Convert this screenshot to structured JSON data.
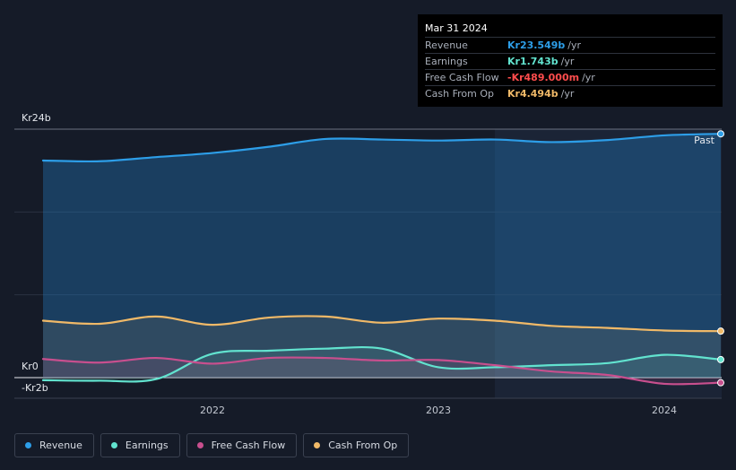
{
  "tooltip": {
    "date": "Mar 31 2024",
    "rows": [
      {
        "label": "Revenue",
        "value": "Kr23.549b",
        "unit": "/yr",
        "color": "#2d9ee8"
      },
      {
        "label": "Earnings",
        "value": "Kr1.743b",
        "unit": "/yr",
        "color": "#62e3cf"
      },
      {
        "label": "Free Cash Flow",
        "value": "-Kr489.000m",
        "unit": "/yr",
        "color": "#ff4d4d"
      },
      {
        "label": "Cash From Op",
        "value": "Kr4.494b",
        "unit": "/yr",
        "color": "#f0b968"
      }
    ]
  },
  "legend": [
    {
      "label": "Revenue",
      "color": "#2d9ee8"
    },
    {
      "label": "Earnings",
      "color": "#62e3cf"
    },
    {
      "label": "Free Cash Flow",
      "color": "#c84f8e"
    },
    {
      "label": "Cash From Op",
      "color": "#f0b968"
    }
  ],
  "chart_data": {
    "type": "area",
    "y_unit": "Kr billions",
    "ylim": [
      -2,
      24
    ],
    "y_tick_labels": [
      {
        "label": "Kr24b",
        "value": 24
      },
      {
        "label": "Kr0",
        "value": 0
      },
      {
        "label": "-Kr2b",
        "value": -2
      }
    ],
    "x_tick_labels": [
      {
        "label": "2022",
        "value": 2022.0
      },
      {
        "label": "2023",
        "value": 2023.0
      },
      {
        "label": "2024",
        "value": 2024.0
      }
    ],
    "xlim": [
      2021.12,
      2024.25
    ],
    "past_label": "Past",
    "past_start": 2023.25,
    "grid": true,
    "legend_position": "bottom-left",
    "series": [
      {
        "name": "Revenue",
        "color": "#2d9ee8",
        "points": [
          [
            2021.25,
            20.97
          ],
          [
            2021.5,
            20.9
          ],
          [
            2021.75,
            21.3
          ],
          [
            2022.0,
            21.7
          ],
          [
            2022.25,
            22.3
          ],
          [
            2022.5,
            23.05
          ],
          [
            2022.75,
            23.0
          ],
          [
            2023.0,
            22.9
          ],
          [
            2023.25,
            23.0
          ],
          [
            2023.5,
            22.75
          ],
          [
            2023.75,
            22.95
          ],
          [
            2024.0,
            23.4
          ],
          [
            2024.25,
            23.55
          ]
        ]
      },
      {
        "name": "Earnings",
        "color": "#62e3cf",
        "points": [
          [
            2021.25,
            -0.25
          ],
          [
            2021.5,
            -0.3
          ],
          [
            2021.75,
            -0.15
          ],
          [
            2022.0,
            2.3
          ],
          [
            2022.25,
            2.6
          ],
          [
            2022.5,
            2.8
          ],
          [
            2022.75,
            2.8
          ],
          [
            2023.0,
            1.0
          ],
          [
            2023.25,
            1.0
          ],
          [
            2023.5,
            1.2
          ],
          [
            2023.75,
            1.4
          ],
          [
            2024.0,
            2.2
          ],
          [
            2024.25,
            1.74
          ]
        ]
      },
      {
        "name": "Free Cash Flow",
        "color": "#c84f8e",
        "points": [
          [
            2021.25,
            1.8
          ],
          [
            2021.5,
            1.45
          ],
          [
            2021.75,
            1.9
          ],
          [
            2022.0,
            1.35
          ],
          [
            2022.25,
            1.9
          ],
          [
            2022.5,
            1.9
          ],
          [
            2022.75,
            1.65
          ],
          [
            2023.0,
            1.7
          ],
          [
            2023.25,
            1.2
          ],
          [
            2023.5,
            0.6
          ],
          [
            2023.75,
            0.25
          ],
          [
            2024.0,
            -0.6
          ],
          [
            2024.25,
            -0.49
          ]
        ]
      },
      {
        "name": "Cash From Op",
        "color": "#f0b968",
        "points": [
          [
            2021.25,
            5.5
          ],
          [
            2021.5,
            5.2
          ],
          [
            2021.75,
            5.9
          ],
          [
            2022.0,
            5.1
          ],
          [
            2022.25,
            5.8
          ],
          [
            2022.5,
            5.9
          ],
          [
            2022.75,
            5.3
          ],
          [
            2023.0,
            5.7
          ],
          [
            2023.25,
            5.5
          ],
          [
            2023.5,
            5.0
          ],
          [
            2023.75,
            4.8
          ],
          [
            2024.0,
            4.55
          ],
          [
            2024.25,
            4.49
          ]
        ]
      }
    ]
  }
}
